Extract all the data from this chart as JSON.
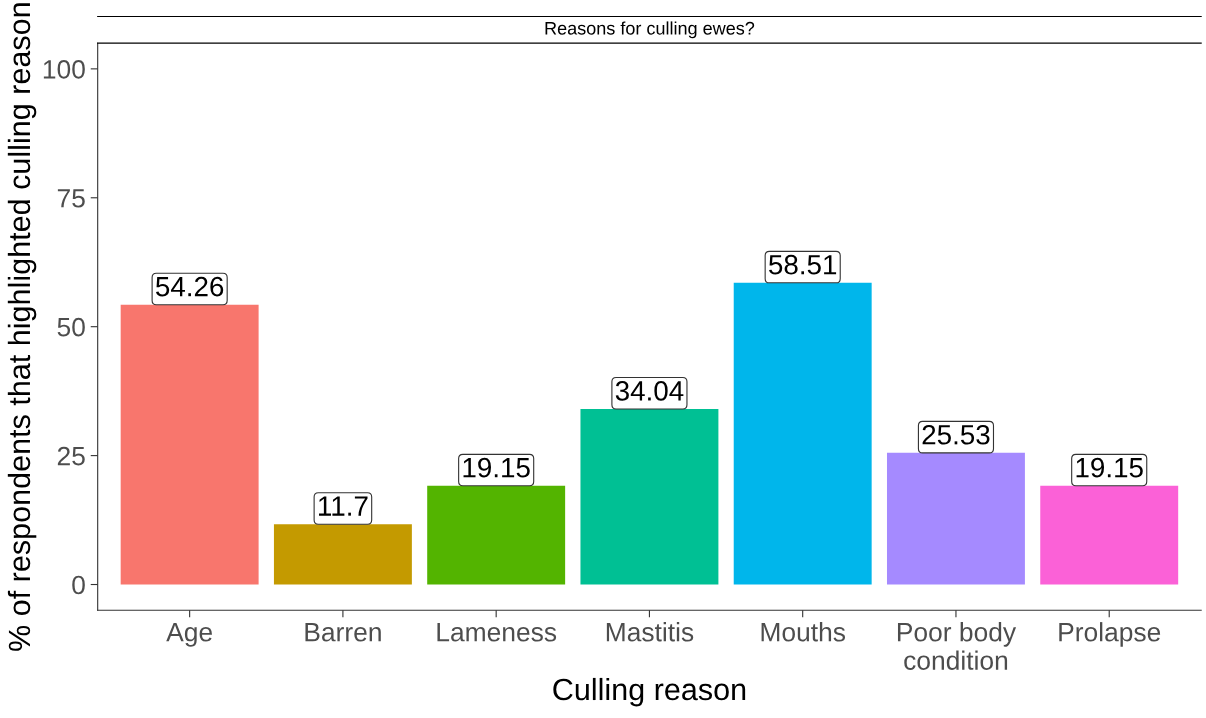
{
  "chart_data": {
    "type": "bar",
    "title": "Reasons for culling ewes?",
    "xlabel": "Culling reason",
    "ylabel": "% of respondents that highlighted culling reason",
    "categories": [
      "Age",
      "Barren",
      "Lameness",
      "Mastitis",
      "Mouths",
      "Poor body\ncondition",
      "Prolapse"
    ],
    "values": [
      54.26,
      11.7,
      19.15,
      34.04,
      58.51,
      25.53,
      19.15
    ],
    "colors": [
      "#f8766d",
      "#c49a00",
      "#53b400",
      "#00c094",
      "#00b6eb",
      "#a58aff",
      "#fb61d7"
    ],
    "ylim": [
      -5,
      105
    ],
    "yticks": [
      0,
      25,
      50,
      75,
      100
    ],
    "grid": false,
    "legend": false,
    "data_labels": true
  }
}
